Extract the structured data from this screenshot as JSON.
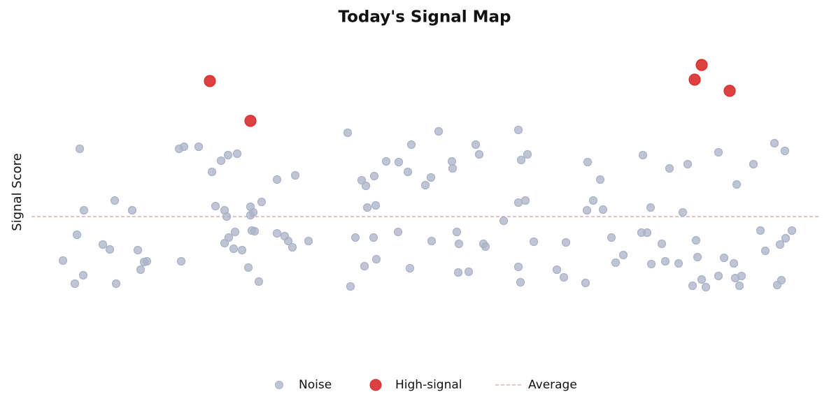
{
  "chart_data": {
    "type": "scatter",
    "title": "Today's Signal Map",
    "y_label": "Signal Score",
    "xlim": [
      0,
      1125
    ],
    "ylim": [
      -21,
      26
    ],
    "series": [
      {
        "name": "Noise",
        "color": "#a9b2c6",
        "x": [
          69,
          75,
          65,
          45,
          62,
          74,
          102,
          112,
          119,
          121,
          144,
          152,
          156,
          161,
          165,
          211,
          218,
          239,
          214,
          258,
          271,
          281,
          294,
          263,
          276,
          279,
          291,
          282,
          276,
          289,
          301,
          313,
          317,
          313,
          315,
          319,
          329,
          310,
          325,
          351,
          377,
          351,
          362,
          367,
          373,
          396,
          452,
          472,
          478,
          490,
          480,
          492,
          507,
          525,
          538,
          543,
          463,
          489,
          524,
          493,
          476,
          456,
          541,
          582,
          563,
          571,
          572,
          601,
          602,
          608,
          611,
          610,
          625,
          635,
          640,
          646,
          649,
          675,
          696,
          700,
          709,
          696,
          706,
          718,
          696,
          699,
          751,
          761,
          764,
          792,
          795,
          813,
          803,
          794,
          817,
          829,
          835,
          846,
          874,
          872,
          880,
          885,
          886,
          901,
          906,
          912,
          925,
          938,
          931,
          950,
          952,
          945,
          958,
          964,
          982,
          1008,
          1032,
          990,
          1004,
          982,
          1006,
          1015,
          1012,
          1062,
          1077,
          1042,
          1049,
          1070,
          1078,
          1087,
          1066,
          1072
        ],
        "values": [
          9.7,
          0.9,
          -2.6,
          -6.3,
          -9.6,
          -8.4,
          -4.0,
          -4.7,
          2.3,
          -9.6,
          0.9,
          -4.8,
          -7.6,
          -6.5,
          -6.4,
          9.7,
          10.0,
          10.0,
          -6.4,
          6.4,
          8.0,
          8.8,
          9.0,
          1.5,
          0.9,
          0.0,
          -2.2,
          -3.0,
          -3.8,
          -4.6,
          -4.8,
          1.4,
          0.6,
          0.2,
          -2.0,
          -2.1,
          2.1,
          -7.3,
          -9.3,
          5.3,
          5.9,
          -2.4,
          -2.8,
          -3.5,
          -4.4,
          -3.5,
          12.0,
          5.2,
          4.4,
          5.8,
          1.3,
          1.6,
          7.9,
          7.8,
          6.4,
          10.3,
          -3.0,
          -3.0,
          -2.2,
          -6.1,
          -7.1,
          -10.0,
          -7.4,
          12.2,
          4.5,
          5.6,
          -3.5,
          7.9,
          6.9,
          -2.2,
          -3.9,
          -8.0,
          -7.9,
          10.3,
          8.9,
          -3.9,
          -4.3,
          -0.6,
          12.4,
          8.1,
          8.9,
          2.0,
          2.3,
          -3.6,
          -7.2,
          -9.4,
          -7.6,
          -8.7,
          -3.7,
          -9.5,
          7.8,
          5.3,
          2.3,
          0.9,
          1.0,
          -3.0,
          -6.6,
          -5.5,
          8.8,
          -2.3,
          -2.3,
          1.3,
          -6.8,
          -3.9,
          -6.4,
          6.9,
          -6.7,
          7.5,
          0.6,
          -3.4,
          -5.8,
          -9.9,
          -9.0,
          -10.1,
          9.2,
          4.6,
          7.5,
          -5.9,
          -6.7,
          -8.5,
          -8.8,
          -8.5,
          -9.9,
          10.5,
          9.4,
          -2.0,
          -4.9,
          -4.0,
          -3.1,
          -2.0,
          -9.8,
          -9.1
        ]
      },
      {
        "name": "High-signal",
        "color": "#d92b2b",
        "x": [
          255,
          313,
          958,
          948,
          998
        ],
        "values": [
          19.4,
          13.7,
          21.7,
          19.6,
          18.0
        ]
      }
    ],
    "reference_line": {
      "name": "Average",
      "value": 0,
      "color": "#ec9a9a"
    }
  }
}
